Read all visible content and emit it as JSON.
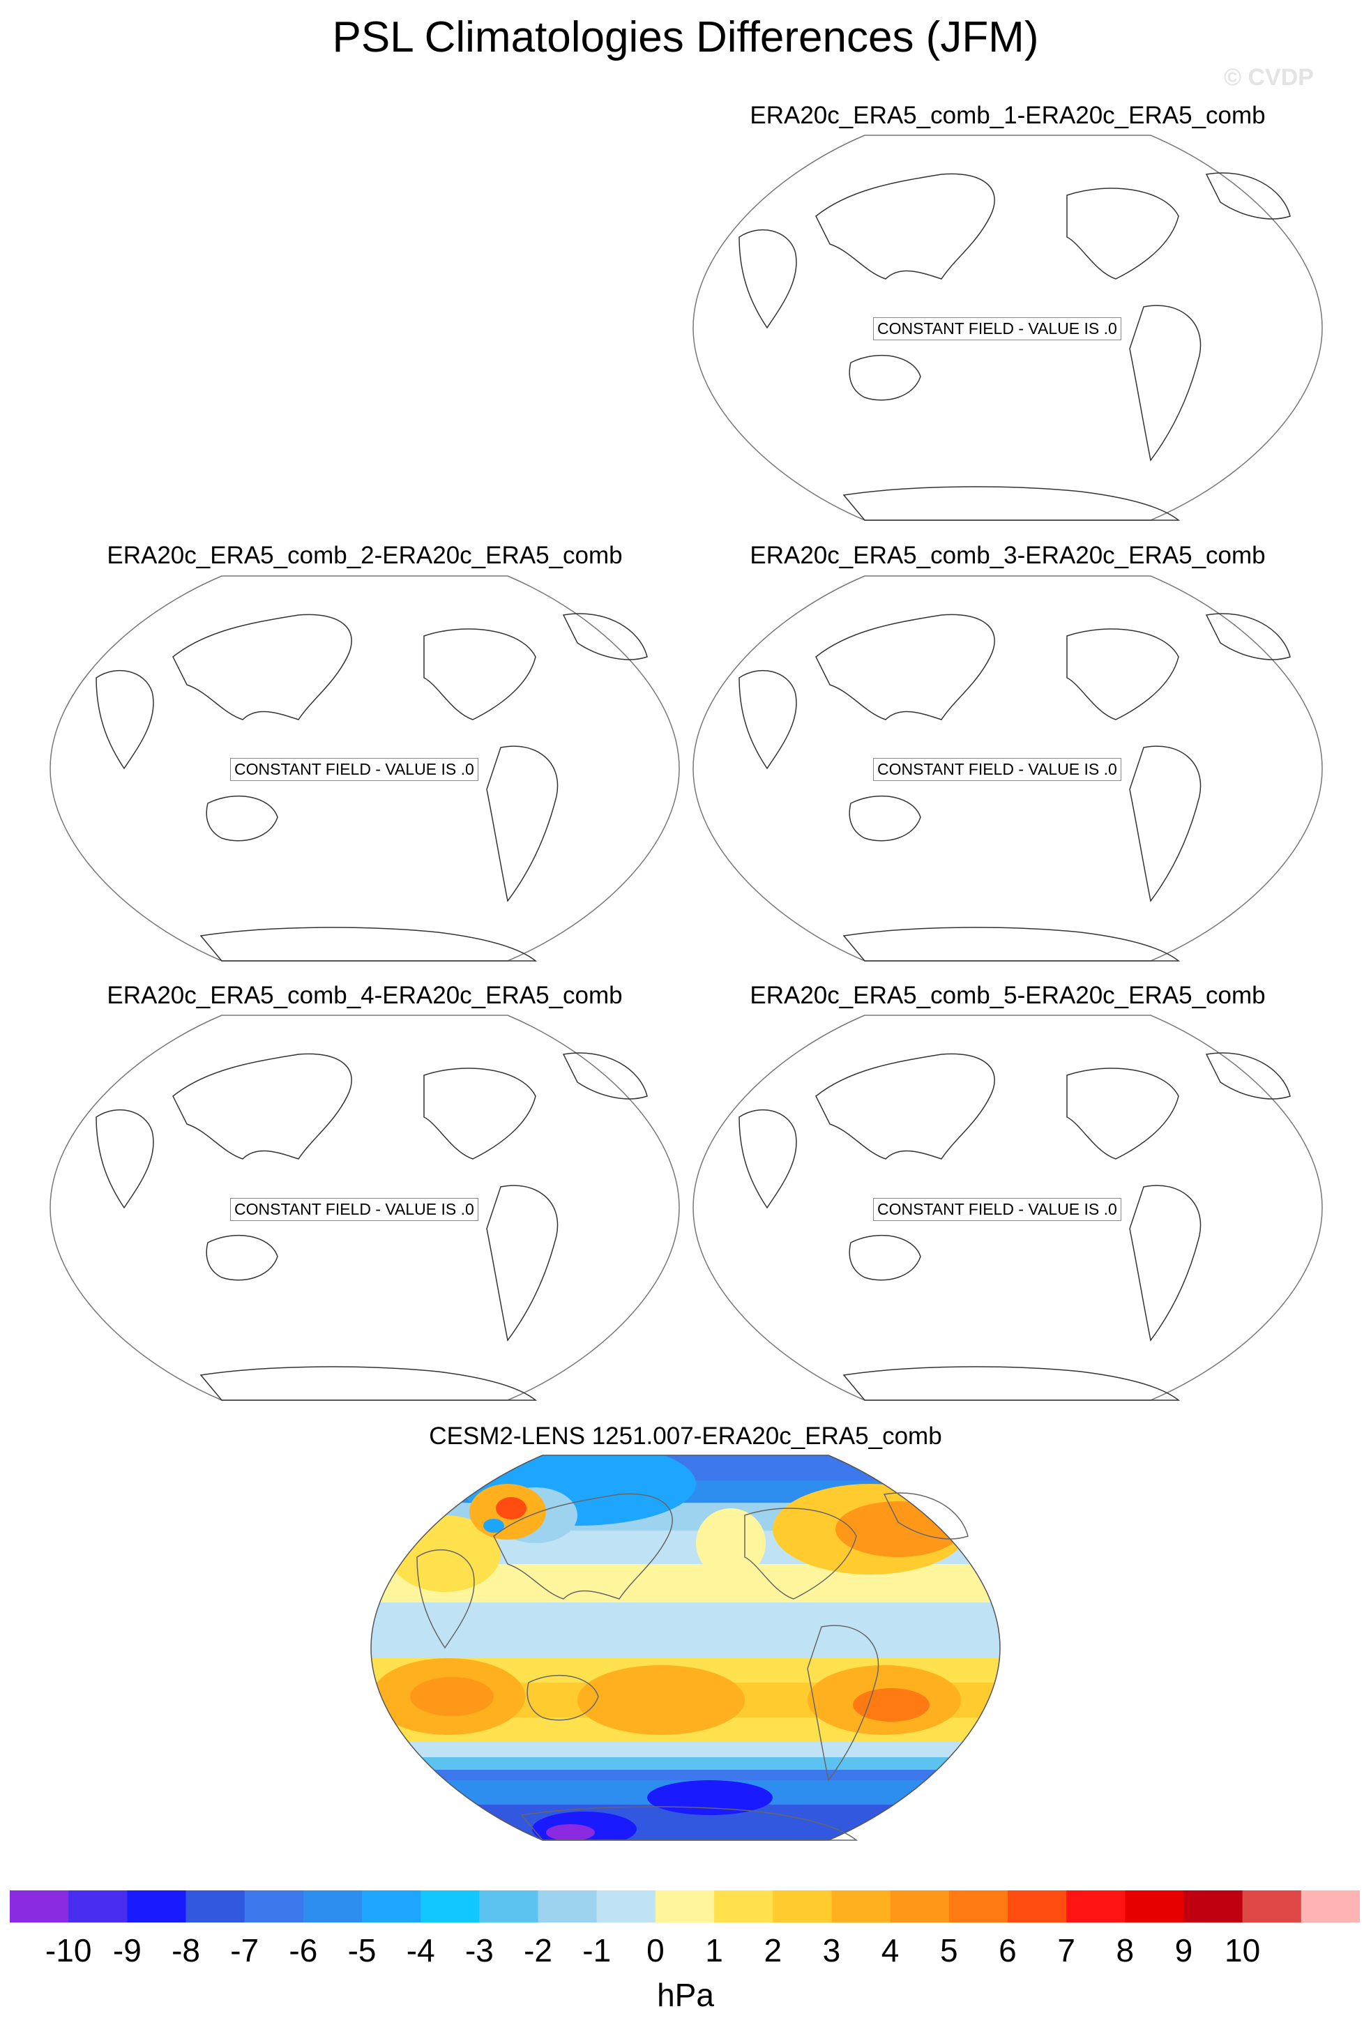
{
  "title": "PSL Climatologies Differences (JFM)",
  "watermark": "© CVDP",
  "constant_field_text": "CONSTANT FIELD - VALUE IS .0",
  "panels": [
    {
      "title": "ERA20c_ERA5_comb_1-ERA20c_ERA5_comb",
      "constant": true
    },
    {
      "title": "ERA20c_ERA5_comb_2-ERA20c_ERA5_comb",
      "constant": true
    },
    {
      "title": "ERA20c_ERA5_comb_3-ERA20c_ERA5_comb",
      "constant": true
    },
    {
      "title": "ERA20c_ERA5_comb_4-ERA20c_ERA5_comb",
      "constant": true
    },
    {
      "title": "ERA20c_ERA5_comb_5-ERA20c_ERA5_comb",
      "constant": true
    },
    {
      "title": "CESM2-LENS 1251.007-ERA20c_ERA5_comb",
      "constant": false
    }
  ],
  "colorbar": {
    "units": "hPa",
    "labels": [
      "-10",
      "-9",
      "-8",
      "-7",
      "-6",
      "-5",
      "-4",
      "-3",
      "-2",
      "-1",
      "0",
      "1",
      "2",
      "3",
      "4",
      "5",
      "6",
      "7",
      "8",
      "9",
      "10"
    ],
    "colors": [
      "#8a2be2",
      "#4a2ef0",
      "#1a1aff",
      "#3358e0",
      "#3c78ec",
      "#2e8ef0",
      "#1ea6ff",
      "#12c6ff",
      "#5cc3f0",
      "#9dd3ee",
      "#bfe3f5",
      "#fff59d",
      "#ffe14d",
      "#ffcb2e",
      "#ffb01e",
      "#ff9818",
      "#ff7a12",
      "#ff4d12",
      "#ff1414",
      "#e60000",
      "#c00010",
      "#e04848",
      "#ffb4b4"
    ]
  }
}
